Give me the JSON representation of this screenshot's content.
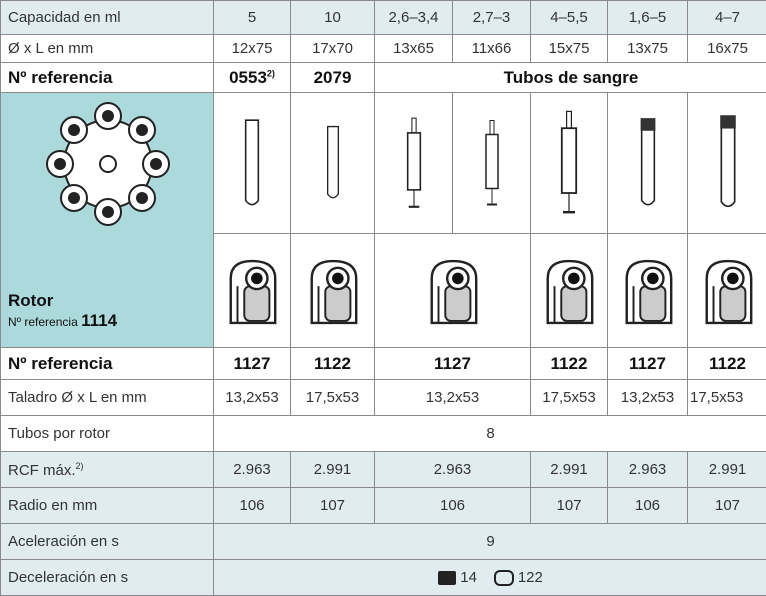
{
  "capacity": {
    "label": "Capacidad en ml",
    "values": [
      "5",
      "10",
      "2,6–3,4",
      "2,7–3",
      "4–5,5",
      "1,6–5",
      "4–7"
    ]
  },
  "dimensions": {
    "label": "Ø x L en mm",
    "values": [
      "12x75",
      "17x70",
      "13x65",
      "11x66",
      "15x75",
      "13x75",
      "16x75"
    ]
  },
  "reference": {
    "label": "Nº referencia",
    "first": "0553",
    "first_note": "2)",
    "second": "2079",
    "group": "Tubos de sangre"
  },
  "rotor": {
    "title": "Rotor",
    "ref_label": "Nº referencia",
    "ref": "1114"
  },
  "holder_reference": {
    "label": "Nº referencia",
    "values": [
      "1127",
      "1122",
      "1127",
      "1122",
      "1127",
      "1122"
    ]
  },
  "bore": {
    "label": "Taladro Ø x L en mm",
    "values": [
      "13,2x53",
      "17,5x53",
      "13,2x53",
      "17,5x53",
      "13,2x53",
      "17,5x53"
    ]
  },
  "tubes_per_rotor": {
    "label": "Tubos por rotor",
    "value": "8"
  },
  "rcf": {
    "label": "RCF máx.",
    "note": "2)",
    "values": [
      "2.963",
      "2.991",
      "2.963",
      "2.991",
      "2.963",
      "2.991"
    ]
  },
  "radius": {
    "label": "Radio en mm",
    "values": [
      "106",
      "107",
      "106",
      "107",
      "106",
      "107"
    ]
  },
  "acceleration": {
    "label": "Aceleración en s",
    "value": "9"
  },
  "deceleration": {
    "label": "Deceleración en s",
    "values": [
      "14",
      "122"
    ]
  }
}
